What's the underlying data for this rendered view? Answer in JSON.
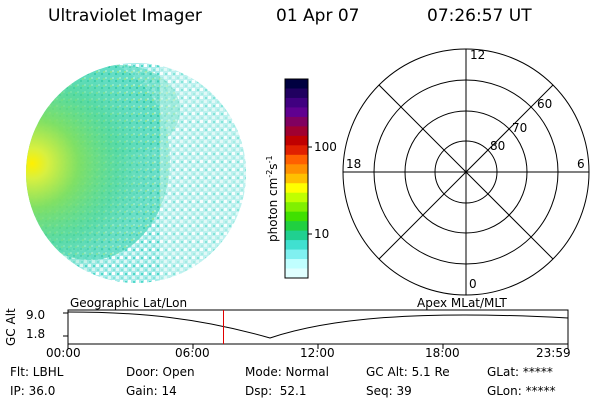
{
  "header": {
    "instrument": "Ultraviolet Imager",
    "date": "01 Apr 07",
    "time": "07:26:57 UT"
  },
  "colorbar": {
    "unit_main": "photon cm",
    "unit_sup1": "-2",
    "unit_s": "s",
    "unit_sup2": "-1",
    "tick_100": "100",
    "tick_10": "10",
    "colors": [
      "#000040",
      "#200060",
      "#400080",
      "#600090",
      "#800060",
      "#a00030",
      "#c00000",
      "#e02000",
      "#ff6000",
      "#ff9000",
      "#ffc000",
      "#ffff00",
      "#c0ff00",
      "#80f000",
      "#40e000",
      "#20d040",
      "#20d090",
      "#40e0d0",
      "#80f0f0",
      "#c0ffff",
      "#e0ffff"
    ]
  },
  "polar": {
    "mlt_top": "12",
    "mlt_bottom": "0",
    "mlt_left": "18",
    "mlt_right": "6",
    "lat_60": "60",
    "lat_70": "70",
    "lat_80": "80"
  },
  "timeline": {
    "axis_label": "GC Alt",
    "y_top": "9.0",
    "y_bottom": "1.8",
    "left_title": "Geographic Lat/Lon",
    "right_title": "Apex MLat/MLT",
    "ticks": [
      "00:00",
      "06:00",
      "12:00",
      "18:00",
      "23:59"
    ],
    "current_time_fraction": 0.311
  },
  "status": {
    "flt": "Flt: LBHL",
    "ip": "IP: 36.0",
    "door": "Door: Open",
    "gain": "Gain: 14",
    "mode": "Mode: Normal",
    "dsp": "Dsp:  52.1",
    "gcalt": "GC Alt: 5.1 Re",
    "seq": "Seq: 39",
    "glat": "GLat: *****",
    "glon": "GLon: *****"
  }
}
